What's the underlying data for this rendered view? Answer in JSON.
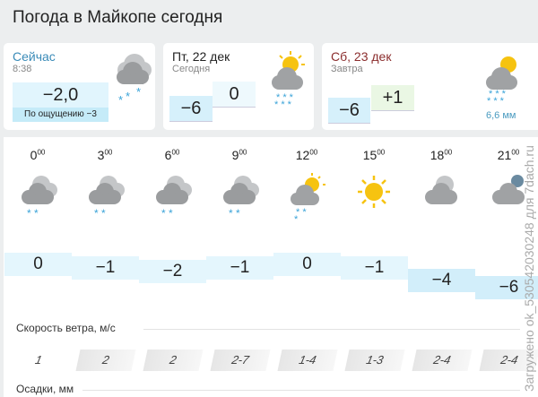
{
  "title": "Погода в Майкопе сегодня",
  "now": {
    "label": "Сейчас",
    "time": "8:38",
    "temp": "−2,0",
    "feels": "По ощущению −3",
    "icon": "cloud-snow-icon"
  },
  "today": {
    "label": "Пт, 22 дек",
    "sub": "Сегодня",
    "night": "−6",
    "day": "0",
    "icon": "sun-cloud-snow-icon"
  },
  "tomorrow": {
    "label": "Сб, 23 дек",
    "sub": "Завтра",
    "night": "−6",
    "day": "+1",
    "precip": "6,6 мм",
    "icon": "sun-cloud-snow-icon"
  },
  "hours": [
    {
      "h": "0",
      "m": "00",
      "t": "0",
      "icon": "cloud-snow-icon",
      "wind": "1"
    },
    {
      "h": "3",
      "m": "00",
      "t": "−1",
      "icon": "cloud-snow-icon",
      "wind": "2"
    },
    {
      "h": "6",
      "m": "00",
      "t": "−2",
      "icon": "cloud-snow-icon",
      "wind": "2"
    },
    {
      "h": "9",
      "m": "00",
      "t": "−1",
      "icon": "cloud-snow-icon",
      "wind": "2-7"
    },
    {
      "h": "12",
      "m": "00",
      "t": "0",
      "icon": "sun-cloud-snow-icon",
      "wind": "1-4"
    },
    {
      "h": "15",
      "m": "00",
      "t": "−1",
      "icon": "sun-icon",
      "wind": "1-3"
    },
    {
      "h": "18",
      "m": "00",
      "t": "−4",
      "icon": "cloud-icon",
      "wind": "2-4"
    },
    {
      "h": "21",
      "m": "00",
      "t": "−6",
      "icon": "moon-cloud-icon",
      "wind": "2-4"
    }
  ],
  "wind_label": "Скорость ветра, м/с",
  "precip_label": "Осадки, мм",
  "watermark": "Загружено ok_530542030248 для 7dach.ru",
  "colors": {
    "bg": "#eceeef",
    "cold": "#e1f5fd",
    "warm": "#eaf7e4",
    "accent_now": "#3a8bb8",
    "accent_tomorrow": "#8b2d2d"
  }
}
